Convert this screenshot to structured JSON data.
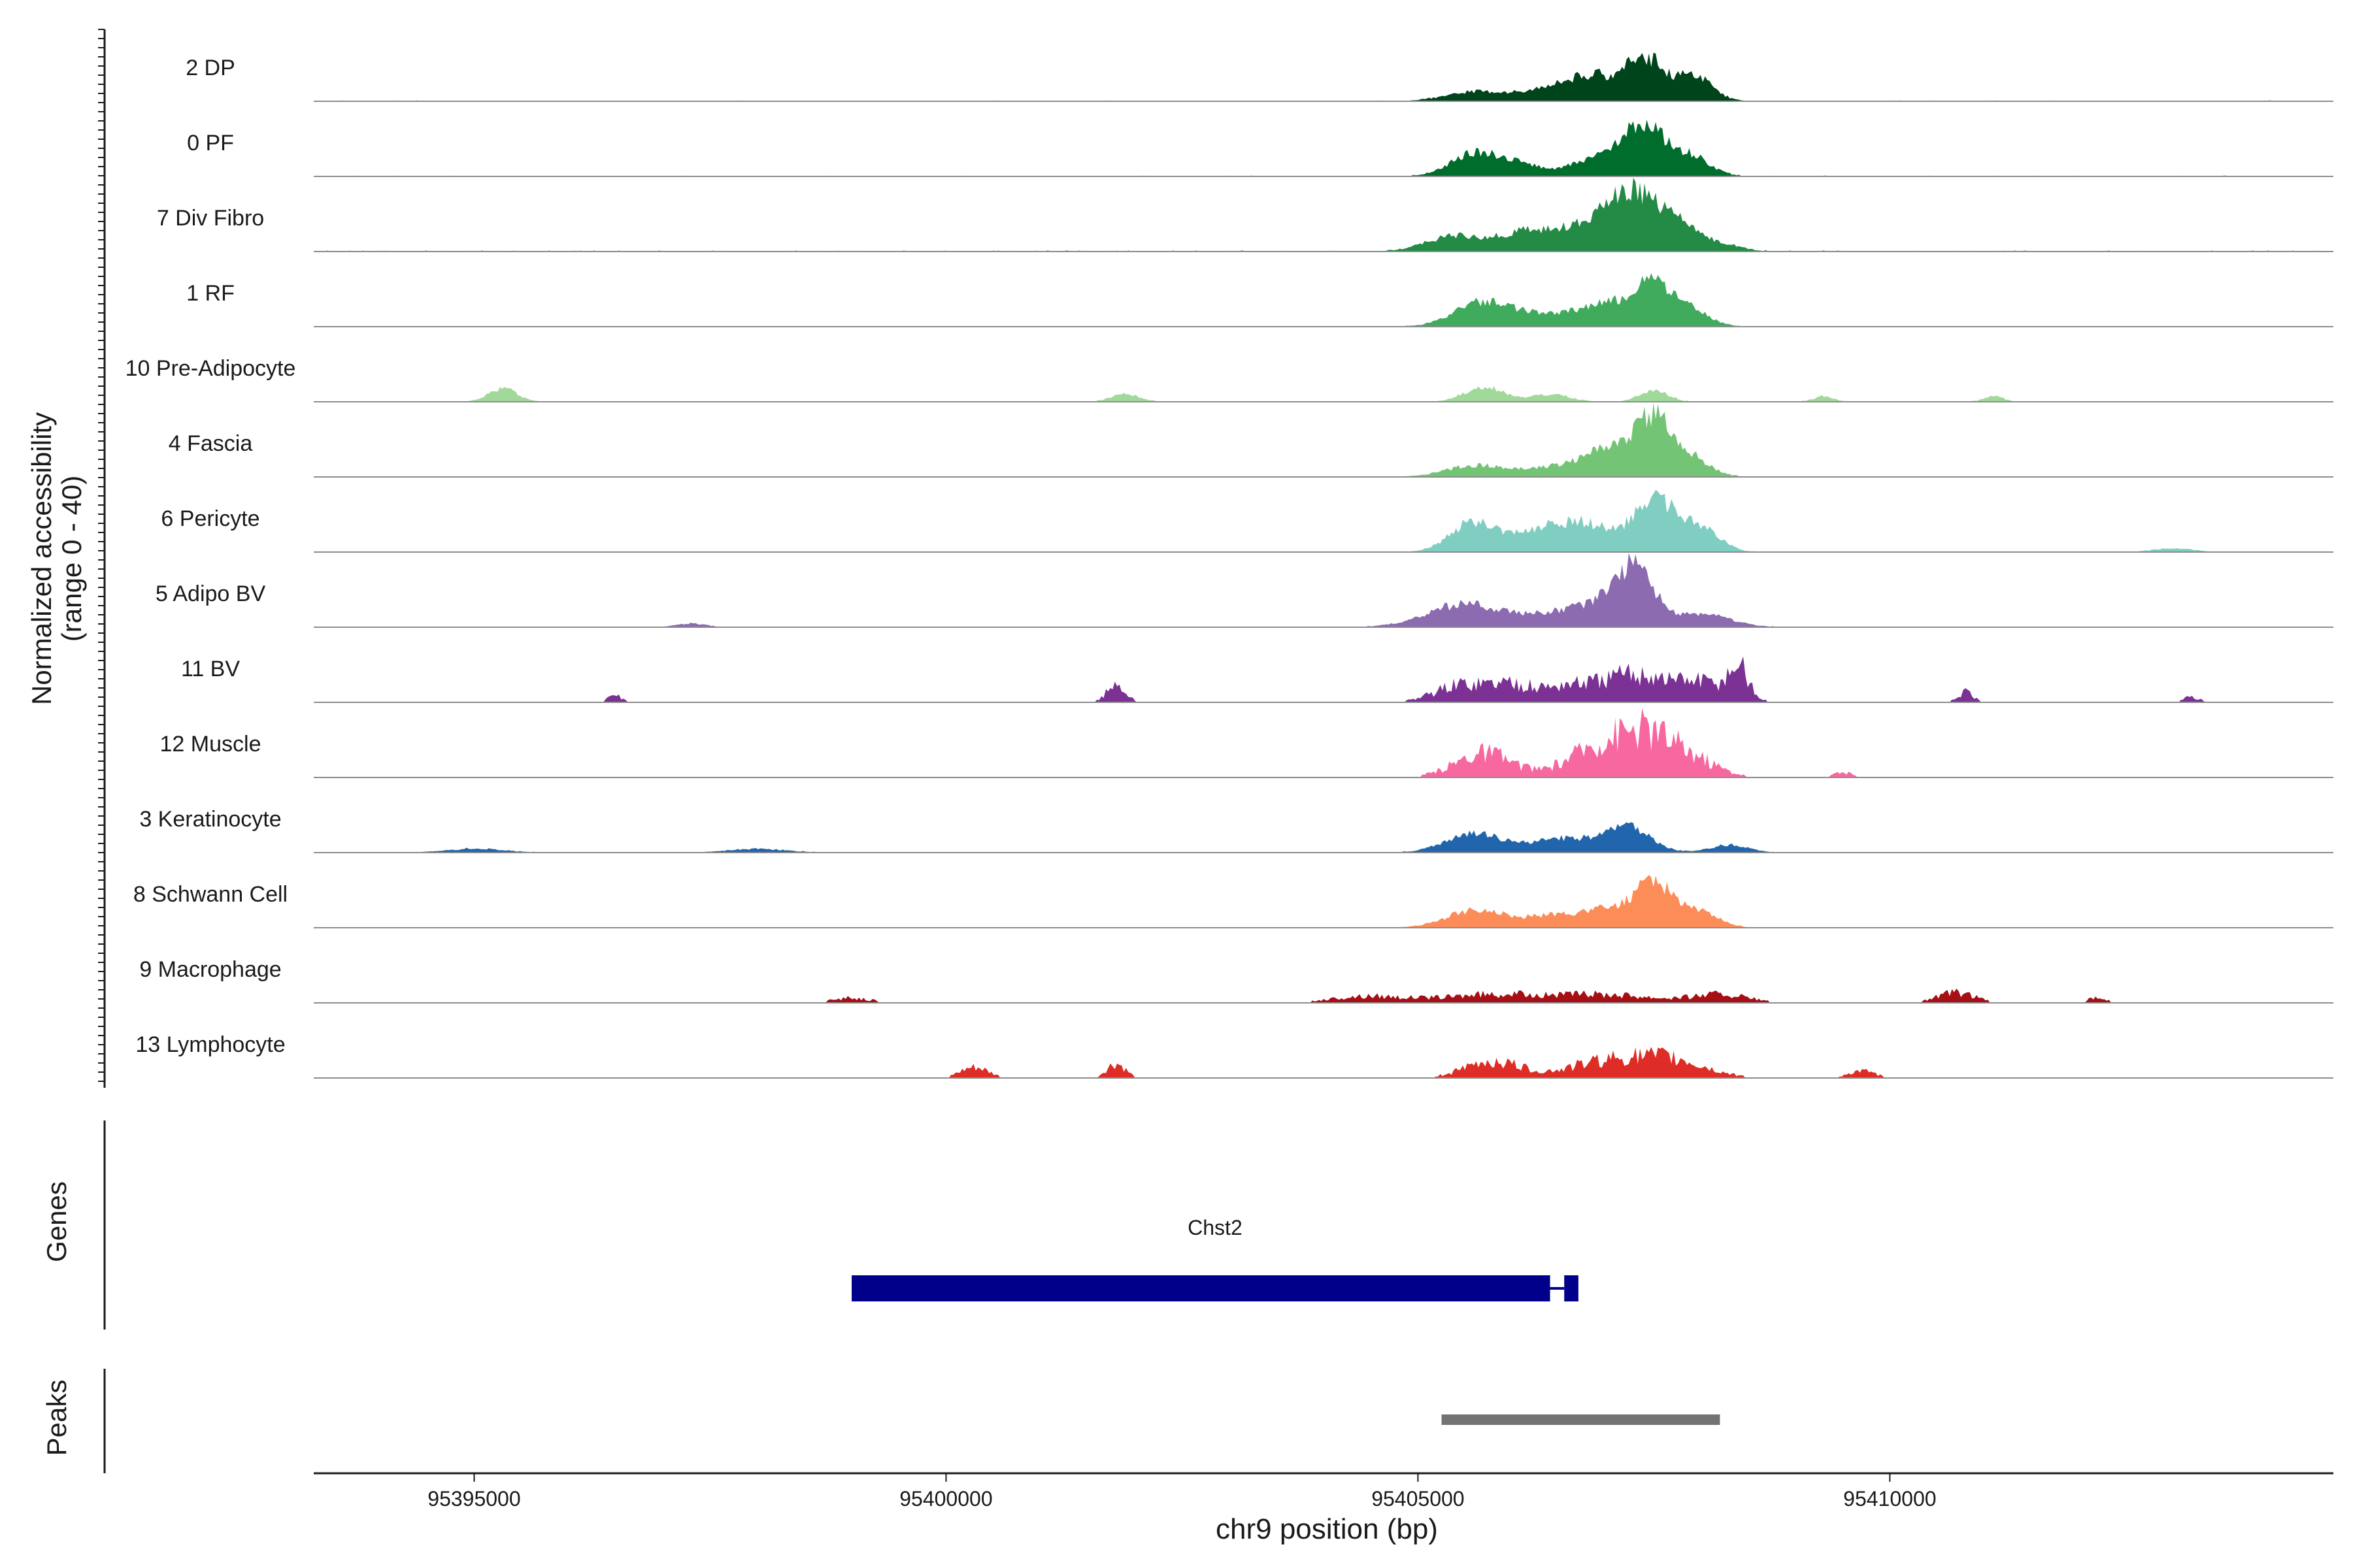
{
  "chart_data": {
    "type": "area",
    "title": "",
    "xlabel": "chr9 position (bp)",
    "x_range": [
      95393300,
      95414700
    ],
    "x_ticks": [
      95395000,
      95400000,
      95405000,
      95410000
    ],
    "x_tick_labels": [
      "95395000",
      "95400000",
      "95405000",
      "95410000"
    ],
    "ylabel": "Normalized accessibility",
    "ylabel_sub": "(range 0 - 40)",
    "ylim": [
      0,
      40
    ],
    "tracks": [
      {
        "name": "2 DP",
        "color": "#00441b",
        "style": "smooth",
        "noise": 0.4,
        "peaks": [
          [
            95405600,
            5,
            300
          ],
          [
            95406400,
            7,
            300
          ],
          [
            95406900,
            12,
            250
          ],
          [
            95407400,
            22,
            180
          ],
          [
            95407900,
            14,
            200
          ]
        ]
      },
      {
        "name": "0 PF",
        "color": "#006d2c",
        "style": "smooth",
        "noise": 0.4,
        "peaks": [
          [
            95405600,
            12,
            250
          ],
          [
            95406100,
            6,
            250
          ],
          [
            95406900,
            10,
            250
          ],
          [
            95407400,
            26,
            220
          ],
          [
            95407900,
            10,
            200
          ]
        ]
      },
      {
        "name": "7 Div Fibro",
        "color": "#238b45",
        "style": "smooth",
        "noise": 0.6,
        "peaks": [
          [
            95405400,
            8,
            300
          ],
          [
            95406200,
            11,
            300
          ],
          [
            95406800,
            9,
            250
          ],
          [
            95407300,
            31,
            300
          ],
          [
            95407800,
            8,
            200
          ],
          [
            95408200,
            4,
            200
          ]
        ]
      },
      {
        "name": "1 RF",
        "color": "#41ab5d",
        "style": "smooth",
        "noise": 0.3,
        "peaks": [
          [
            95405700,
            13,
            300
          ],
          [
            95406400,
            6,
            300
          ],
          [
            95407000,
            12,
            250
          ],
          [
            95407500,
            22,
            200
          ],
          [
            95407900,
            8,
            200
          ]
        ]
      },
      {
        "name": "10 Pre-Adipocyte",
        "color": "#a1d99b",
        "style": "smooth",
        "noise": 0.3,
        "peaks": [
          [
            95395300,
            7,
            150
          ],
          [
            95401900,
            4,
            150
          ],
          [
            95405700,
            8,
            200
          ],
          [
            95406400,
            4,
            200
          ],
          [
            95407500,
            6,
            150
          ],
          [
            95409300,
            3,
            100
          ],
          [
            95411100,
            3,
            100
          ]
        ]
      },
      {
        "name": "4 Fascia",
        "color": "#74c476",
        "style": "smooth",
        "noise": 0.3,
        "peaks": [
          [
            95405600,
            6,
            300
          ],
          [
            95406400,
            5,
            300
          ],
          [
            95407000,
            14,
            250
          ],
          [
            95407500,
            30,
            200
          ],
          [
            95407900,
            9,
            200
          ]
        ]
      },
      {
        "name": "6 Pericyte",
        "color": "#80cdc1",
        "style": "smooth",
        "noise": 0.3,
        "peaks": [
          [
            95405600,
            16,
            250
          ],
          [
            95406300,
            11,
            250
          ],
          [
            95406800,
            14,
            250
          ],
          [
            95407500,
            28,
            220
          ],
          [
            95408000,
            12,
            200
          ],
          [
            95413000,
            2,
            200
          ]
        ]
      },
      {
        "name": "5 Adipo BV",
        "color": "#8c6bb1",
        "style": "smooth",
        "noise": 0.3,
        "peaks": [
          [
            95397300,
            2,
            150
          ],
          [
            95405500,
            12,
            400
          ],
          [
            95406400,
            6,
            300
          ],
          [
            95406900,
            10,
            250
          ],
          [
            95407300,
            30,
            200
          ],
          [
            95408000,
            7,
            300
          ]
        ]
      },
      {
        "name": "11 BV",
        "color": "#7b3294",
        "style": "jagged",
        "noise": 0,
        "peaks": [
          [
            95396500,
            4,
            80
          ],
          [
            95401800,
            10,
            100
          ],
          [
            95405500,
            11,
            300
          ],
          [
            95406000,
            8,
            200
          ],
          [
            95406600,
            10,
            300
          ],
          [
            95407300,
            16,
            300
          ],
          [
            95408000,
            12,
            300
          ],
          [
            95408400,
            18,
            100
          ],
          [
            95410800,
            6,
            80
          ],
          [
            95413200,
            3,
            100
          ]
        ]
      },
      {
        "name": "12 Muscle",
        "color": "#f768a1",
        "style": "jagged",
        "noise": 0,
        "peaks": [
          [
            95405700,
            15,
            300
          ],
          [
            95406800,
            12,
            300
          ],
          [
            95407400,
            28,
            350
          ],
          [
            95408000,
            6,
            250
          ],
          [
            95409500,
            3,
            100
          ]
        ]
      },
      {
        "name": "3 Keratinocyte",
        "color": "#2166ac",
        "style": "smooth",
        "noise": 0.3,
        "peaks": [
          [
            95395000,
            2,
            300
          ],
          [
            95398000,
            2,
            300
          ],
          [
            95405600,
            10,
            300
          ],
          [
            95406500,
            7,
            300
          ],
          [
            95407200,
            14,
            250
          ],
          [
            95408300,
            4,
            200
          ]
        ]
      },
      {
        "name": "8 Schwann Cell",
        "color": "#fc8d59",
        "style": "smooth",
        "noise": 0.3,
        "peaks": [
          [
            95405600,
            9,
            300
          ],
          [
            95406400,
            6,
            300
          ],
          [
            95407000,
            9,
            250
          ],
          [
            95407500,
            24,
            200
          ],
          [
            95408000,
            8,
            200
          ]
        ]
      },
      {
        "name": "9 Macrophage",
        "color": "#a50f15",
        "style": "jagged",
        "noise": 0,
        "peaks": [
          [
            95399000,
            3,
            200
          ],
          [
            95404500,
            4,
            400
          ],
          [
            95405800,
            5,
            500
          ],
          [
            95407000,
            5,
            500
          ],
          [
            95408200,
            5,
            300
          ],
          [
            95410700,
            6,
            200
          ],
          [
            95412200,
            3,
            100
          ]
        ]
      },
      {
        "name": "13 Lymphocyte",
        "color": "#de2d26",
        "style": "jagged",
        "noise": 0,
        "peaks": [
          [
            95400300,
            6,
            150
          ],
          [
            95401800,
            8,
            100
          ],
          [
            95405800,
            10,
            300
          ],
          [
            95406900,
            8,
            350
          ],
          [
            95407600,
            12,
            400
          ],
          [
            95409700,
            4,
            150
          ]
        ]
      }
    ],
    "genes_label": "Genes",
    "genes": [
      {
        "name": "Chst2",
        "color": "#00008b",
        "exons": [
          [
            95399000,
            95406400
          ],
          [
            95406550,
            95406700
          ]
        ]
      }
    ],
    "peaks_label": "Peaks",
    "peak_regions": [
      {
        "start": 95405250,
        "end": 95408200,
        "color": "#737373"
      }
    ]
  }
}
